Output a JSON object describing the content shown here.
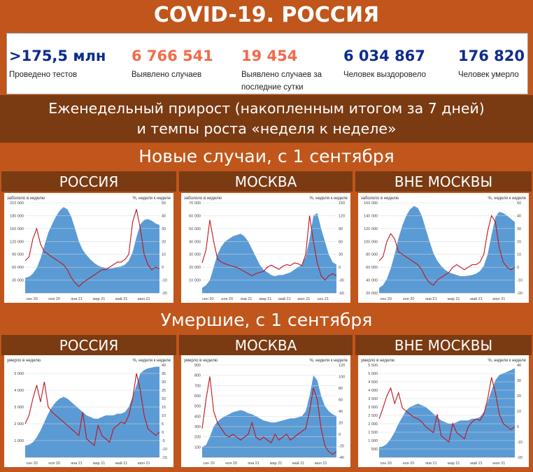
{
  "header": {
    "title": "COVID-19. РОССИЯ"
  },
  "stats": [
    {
      "value": ">175,5 млн",
      "label": "Проведено тестов",
      "color": "#0d2c8c"
    },
    {
      "value": "6 766 541",
      "label": "Выявлено случаев",
      "color": "#f26b4a"
    },
    {
      "value": "19 454",
      "label": "Выявлено случаев за последние сутки",
      "color": "#f26b4a"
    },
    {
      "value": "6 034 867",
      "label": "Человек выздоровело",
      "color": "#0d2c8c"
    },
    {
      "value": "176 820",
      "label": "Человек умерло",
      "color": "#0d2c8c"
    }
  ],
  "sections": {
    "weekly_line1": "Еженедельный прирост (накопленным итогом за 7 дней)",
    "weekly_line2": "и темпы роста «неделя к неделе»",
    "cases": "Новые случаи, с 1 сентября",
    "deaths": "Умершие, с 1 сентября"
  },
  "columns": [
    "РОССИЯ",
    "МОСКВА",
    "ВНЕ МОСКВЫ"
  ],
  "colors": {
    "area": "#5b9bd5",
    "line": "#c0131b",
    "brown": "#7a3a12",
    "orange": "#c0561b"
  },
  "chart_data": [
    {
      "type": "area",
      "group": "cases",
      "region": "РОССИЯ",
      "ylabel": "заболело в неделю",
      "y2label": "%, неделя к неделе",
      "ylim": [
        0,
        210000
      ],
      "y2lim": [
        -20,
        50
      ],
      "yticks": [
        30000,
        60000,
        90000,
        120000,
        150000,
        180000,
        210000
      ],
      "ytick_labels": [
        "30 000",
        "60 000",
        "90 000",
        "120 000",
        "150 000",
        "180 000",
        "210 000"
      ],
      "y2ticks": [
        -20,
        -10,
        0,
        10,
        20,
        30,
        40,
        50
      ],
      "xticks": [
        "сен 20",
        "ноя 20",
        "янв 21",
        "мар 21",
        "май 21",
        "июл 21"
      ],
      "series": [
        {
          "name": "",
          "type": "area",
          "values": [
            35000,
            38000,
            45000,
            58000,
            80000,
            110000,
            140000,
            160000,
            178000,
            192000,
            200000,
            195000,
            178000,
            150000,
            120000,
            100000,
            88000,
            78000,
            70000,
            64000,
            60000,
            58000,
            57000,
            58000,
            60000,
            62000,
            66000,
            75000,
            95000,
            130000,
            160000,
            170000,
            172000,
            168000,
            162000,
            158000
          ]
        },
        {
          "name": "",
          "type": "line",
          "values": [
            5,
            8,
            22,
            30,
            18,
            12,
            10,
            8,
            6,
            4,
            2,
            -2,
            -8,
            -12,
            -15,
            -12,
            -10,
            -8,
            -6,
            -4,
            -2,
            -2,
            0,
            2,
            4,
            4,
            6,
            10,
            35,
            45,
            30,
            10,
            2,
            -2,
            0,
            -1
          ]
        }
      ]
    },
    {
      "type": "area",
      "group": "cases",
      "region": "МОСКВА",
      "ylabel": "заболело в неделю",
      "y2label": "%, неделя к неделе",
      "ylim": [
        0,
        70000
      ],
      "y2lim": [
        -60,
        150
      ],
      "yticks": [
        10000,
        20000,
        30000,
        40000,
        50000,
        60000,
        70000
      ],
      "ytick_labels": [
        "10 000",
        "20 000",
        "30 000",
        "40 000",
        "50 000",
        "60 000",
        "70 000"
      ],
      "y2ticks": [
        -60,
        -30,
        0,
        30,
        60,
        90,
        120,
        150
      ],
      "xticks": [
        "сен 20",
        "ноя 20",
        "янв 21",
        "мар 21",
        "май 21",
        "июл 21",
        "сен 21"
      ],
      "series": [
        {
          "name": "",
          "type": "area",
          "values": [
            4000,
            6000,
            10000,
            20000,
            30000,
            36000,
            40000,
            42000,
            44000,
            45000,
            46000,
            44000,
            40000,
            34000,
            28000,
            22000,
            18000,
            16000,
            14000,
            13000,
            14000,
            14000,
            15000,
            16000,
            18000,
            20000,
            22000,
            28000,
            42000,
            60000,
            62000,
            50000,
            40000,
            30000,
            24000,
            22000
          ]
        },
        {
          "name": "",
          "type": "line",
          "values": [
            10,
            40,
            110,
            60,
            20,
            12,
            8,
            5,
            2,
            0,
            -5,
            -10,
            -15,
            -20,
            -15,
            -12,
            -10,
            0,
            5,
            0,
            -5,
            2,
            6,
            4,
            10,
            8,
            4,
            30,
            120,
            60,
            10,
            -20,
            -30,
            -20,
            -15,
            -20
          ]
        }
      ]
    },
    {
      "type": "area",
      "group": "cases",
      "region": "ВНЕ МОСКВЫ",
      "ylabel": "заболело в неделю",
      "y2label": "%, неделя к неделе",
      "ylim": [
        20000,
        160000
      ],
      "y2lim": [
        -20,
        50
      ],
      "yticks": [
        20000,
        40000,
        60000,
        80000,
        100000,
        120000,
        140000,
        160000
      ],
      "ytick_labels": [
        "20 000",
        "40 000",
        "60 000",
        "80 000",
        "100 000",
        "120 000",
        "140 000",
        "160 000"
      ],
      "y2ticks": [
        -20,
        -10,
        0,
        10,
        20,
        30,
        40,
        50
      ],
      "xticks": [
        "сен 20",
        "ноя 20",
        "янв 21",
        "мар 21",
        "май 21",
        "июл 21"
      ],
      "series": [
        {
          "name": "",
          "type": "area",
          "values": [
            28000,
            32000,
            42000,
            58000,
            80000,
            105000,
            125000,
            140000,
            150000,
            155000,
            152000,
            140000,
            120000,
            100000,
            82000,
            70000,
            62000,
            56000,
            52000,
            50000,
            48000,
            46000,
            46000,
            47000,
            48000,
            50000,
            54000,
            62000,
            80000,
            110000,
            138000,
            146000,
            144000,
            140000,
            135000,
            130000
          ]
        },
        {
          "name": "",
          "type": "line",
          "values": [
            5,
            8,
            20,
            26,
            22,
            12,
            10,
            8,
            6,
            4,
            2,
            -2,
            -8,
            -12,
            -14,
            -10,
            -8,
            -6,
            -4,
            0,
            2,
            0,
            -2,
            0,
            2,
            2,
            4,
            10,
            28,
            40,
            35,
            15,
            4,
            0,
            -2,
            0
          ]
        }
      ]
    },
    {
      "type": "area",
      "group": "deaths",
      "region": "РОССИЯ",
      "ylabel": "умерло в неделю",
      "y2label": "%, неделя к неделе",
      "ylim": [
        0,
        5500
      ],
      "y2lim": [
        -15,
        40
      ],
      "yticks": [
        1000,
        2000,
        3000,
        4000,
        5000
      ],
      "ytick_labels": [
        "1 000",
        "2 000",
        "3 000",
        "4 000",
        "5 000"
      ],
      "y2ticks": [
        -15,
        -10,
        -5,
        0,
        5,
        10,
        15,
        20,
        25,
        30,
        35,
        40
      ],
      "xticks": [
        "сен 20",
        "ноя 20",
        "янв 21",
        "мар 21",
        "май 21",
        "июл 21"
      ],
      "series": [
        {
          "name": "",
          "type": "area",
          "values": [
            700,
            750,
            900,
            1200,
            1600,
            2100,
            2600,
            3000,
            3300,
            3500,
            3600,
            3500,
            3300,
            3100,
            2900,
            2700,
            2500,
            2400,
            2300,
            2300,
            2400,
            2500,
            2500,
            2500,
            2600,
            2600,
            2700,
            3000,
            3600,
            4300,
            5000,
            5200,
            5300,
            5350,
            5400,
            5400
          ]
        },
        {
          "name": "",
          "type": "line",
          "values": [
            5,
            10,
            20,
            28,
            18,
            30,
            15,
            12,
            10,
            8,
            6,
            4,
            2,
            0,
            -2,
            12,
            -4,
            -6,
            -8,
            4,
            -2,
            -4,
            -6,
            2,
            4,
            6,
            5,
            10,
            20,
            35,
            25,
            10,
            2,
            0,
            -2,
            0
          ]
        }
      ]
    },
    {
      "type": "area",
      "group": "deaths",
      "region": "МОСКВА",
      "ylabel": "умерло в неделю",
      "y2label": "%, неделя к неделе",
      "ylim": [
        0,
        900
      ],
      "y2lim": [
        -40,
        120
      ],
      "yticks": [
        100,
        200,
        300,
        400,
        500,
        600,
        700,
        800,
        900
      ],
      "ytick_labels": [
        "100",
        "200",
        "300",
        "400",
        "500",
        "600",
        "700",
        "800",
        "900"
      ],
      "y2ticks": [
        -40,
        -20,
        0,
        20,
        40,
        60,
        80,
        100,
        120
      ],
      "xticks": [
        "сен 20",
        "ноя 20",
        "янв 21",
        "мар 21",
        "май 21",
        "июл 21"
      ],
      "series": [
        {
          "name": "",
          "type": "area",
          "values": [
            100,
            120,
            200,
            300,
            350,
            380,
            400,
            420,
            440,
            450,
            460,
            450,
            430,
            420,
            400,
            380,
            360,
            350,
            340,
            340,
            350,
            360,
            370,
            380,
            380,
            390,
            400,
            450,
            600,
            800,
            750,
            600,
            500,
            450,
            420,
            400
          ]
        },
        {
          "name": "",
          "type": "line",
          "values": [
            10,
            60,
            100,
            40,
            20,
            10,
            0,
            -5,
            0,
            -5,
            -10,
            -5,
            0,
            20,
            -5,
            -10,
            -5,
            -10,
            -15,
            0,
            -10,
            -5,
            0,
            -10,
            -5,
            0,
            5,
            10,
            40,
            80,
            60,
            10,
            -20,
            -30,
            -35,
            -30
          ]
        }
      ]
    },
    {
      "type": "area",
      "group": "deaths",
      "region": "ВНЕ МОСКВЫ",
      "ylabel": "умерло в неделю",
      "y2label": "%, неделя к неделе",
      "ylim": [
        0,
        5500
      ],
      "y2lim": [
        -20,
        40
      ],
      "yticks": [
        500,
        1000,
        1500,
        2000,
        2500,
        3000,
        3500,
        4000,
        4500,
        5000,
        5500
      ],
      "ytick_labels": [
        "500",
        "1 000",
        "1 500",
        "2 000",
        "2 500",
        "3 000",
        "3 500",
        "4 000",
        "4 500",
        "5 000",
        "5 500"
      ],
      "y2ticks": [
        -20,
        -10,
        0,
        10,
        20,
        30,
        40
      ],
      "xticks": [
        "сен 20",
        "ноя 20",
        "янв 21",
        "мар 21",
        "май 21",
        "июл 21"
      ],
      "series": [
        {
          "name": "",
          "type": "area",
          "values": [
            600,
            650,
            800,
            1100,
            1500,
            2000,
            2400,
            2800,
            3000,
            3100,
            3200,
            3100,
            3000,
            2800,
            2600,
            2400,
            2200,
            2100,
            2000,
            2000,
            2100,
            2200,
            2200,
            2200,
            2300,
            2300,
            2400,
            2700,
            3300,
            4000,
            4600,
            4900,
            5000,
            5100,
            5200,
            5300
          ]
        },
        {
          "name": "",
          "type": "line",
          "values": [
            5,
            12,
            20,
            25,
            15,
            22,
            12,
            10,
            8,
            6,
            5,
            3,
            0,
            -2,
            -4,
            8,
            -6,
            -8,
            -10,
            2,
            -4,
            -6,
            -8,
            0,
            3,
            5,
            4,
            8,
            18,
            32,
            22,
            8,
            2,
            0,
            -2,
            0
          ]
        }
      ]
    }
  ]
}
